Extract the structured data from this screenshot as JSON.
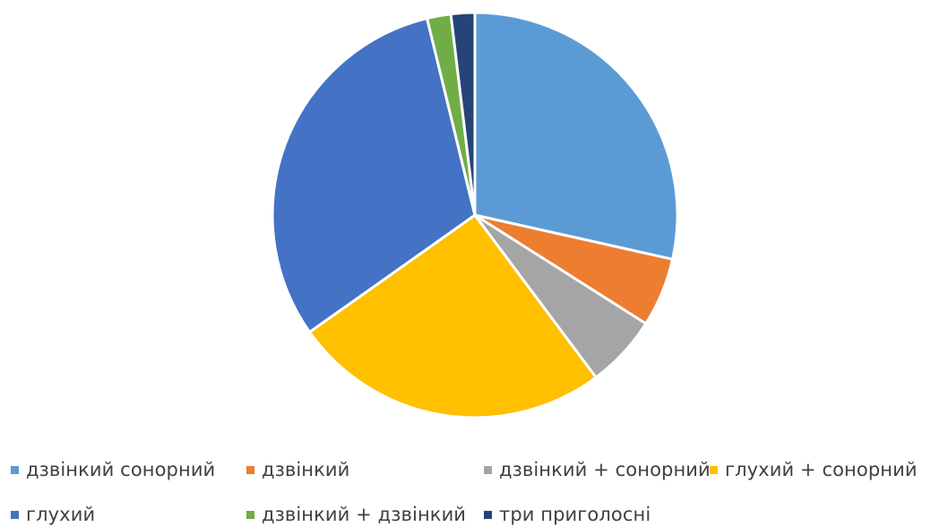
{
  "chart_data": {
    "type": "pie",
    "title": "",
    "series": [
      {
        "values": [
          28.5,
          5.5,
          5.8,
          25.4,
          31.0,
          1.9,
          1.9
        ]
      }
    ],
    "categories": [
      "дзвінкий сонорний",
      "дзвінкий",
      "дзвінкий + сонорний",
      "глухий + сонорний",
      "глухий",
      "дзвінкий + дзвінкий",
      "три приголосні"
    ],
    "colors": [
      "#5B9BD5",
      "#ED7D31",
      "#A5A5A5",
      "#FFC000",
      "#4472C4",
      "#70AD47",
      "#264478"
    ],
    "start_angle_deg": 0,
    "direction": "clockwise",
    "legend": {
      "placement": "bottom"
    }
  }
}
